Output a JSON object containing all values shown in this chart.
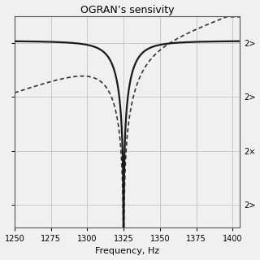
{
  "title": "OGRAN’s sensivity",
  "xlabel": "Frequency, Hz",
  "xlim": [
    1250,
    1405
  ],
  "f0": 1325.0,
  "f_start": 1250,
  "f_end": 1405,
  "n_points": 3000,
  "solid_color": "#1a1a1a",
  "dotted_color": "#333333",
  "background_color": "#f0f0f0",
  "grid_color": "#bbbbbb",
  "xticks": [
    1250,
    1275,
    1300,
    1325,
    1350,
    1375,
    1400
  ],
  "title_fontsize": 9,
  "label_fontsize": 8,
  "tick_fontsize": 7,
  "ylim": [
    -4.5,
    0.2
  ],
  "ylog_ticks": [
    -4.0,
    -2.8,
    -1.6,
    -0.4
  ],
  "right_labels": [
    "2>",
    "2×",
    "2>",
    "2>"
  ],
  "Q_solid": 55,
  "Q_dotted": 30,
  "solid_level": -0.35,
  "dotted_asymmetry": 1.8
}
